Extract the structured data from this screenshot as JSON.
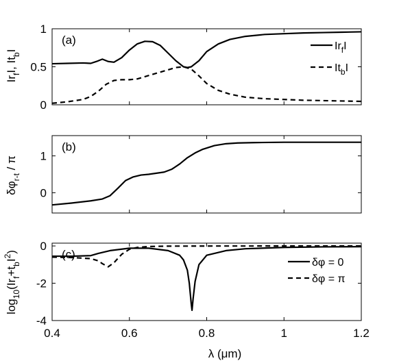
{
  "chart_data": [
    {
      "type": "line",
      "panel_label": "(a)",
      "ylabel": "|r_f|, |t_b|",
      "ylabel_parts": {
        "main1": "Ir",
        "sub1": "f",
        "mid": "I, It",
        "sub2": "b",
        "end": "I"
      },
      "xlim": [
        0.4,
        1.2
      ],
      "ylim": [
        0,
        1
      ],
      "yticks": [
        "0",
        "0.5",
        "1"
      ],
      "ytick_values": [
        0,
        0.5,
        1
      ],
      "legend_position": "top-right",
      "legend": [
        {
          "label": "|r_f|",
          "parts": {
            "main": "Ir",
            "sub": "f",
            "end": "I"
          },
          "style": "solid"
        },
        {
          "label": "|t_b|",
          "parts": {
            "main": "It",
            "sub": "b",
            "end": "I"
          },
          "style": "dashed"
        }
      ],
      "series": [
        {
          "name": "|r_f|",
          "style": "solid",
          "x": [
            0.4,
            0.44,
            0.48,
            0.5,
            0.515,
            0.53,
            0.545,
            0.56,
            0.58,
            0.6,
            0.62,
            0.64,
            0.66,
            0.68,
            0.7,
            0.72,
            0.74,
            0.75,
            0.76,
            0.78,
            0.8,
            0.83,
            0.86,
            0.9,
            0.95,
            1.0,
            1.05,
            1.1,
            1.15,
            1.2
          ],
          "y": [
            0.54,
            0.545,
            0.55,
            0.545,
            0.57,
            0.6,
            0.57,
            0.56,
            0.62,
            0.72,
            0.8,
            0.835,
            0.83,
            0.78,
            0.68,
            0.58,
            0.5,
            0.49,
            0.5,
            0.58,
            0.7,
            0.8,
            0.86,
            0.9,
            0.925,
            0.935,
            0.945,
            0.95,
            0.955,
            0.96
          ]
        },
        {
          "name": "|t_b|",
          "style": "dashed",
          "x": [
            0.4,
            0.44,
            0.48,
            0.5,
            0.52,
            0.54,
            0.56,
            0.58,
            0.6,
            0.62,
            0.64,
            0.66,
            0.68,
            0.7,
            0.72,
            0.74,
            0.76,
            0.78,
            0.8,
            0.83,
            0.86,
            0.9,
            0.95,
            1.0,
            1.05,
            1.1,
            1.15,
            1.2
          ],
          "y": [
            0.02,
            0.04,
            0.07,
            0.11,
            0.18,
            0.27,
            0.32,
            0.33,
            0.33,
            0.34,
            0.37,
            0.4,
            0.43,
            0.46,
            0.49,
            0.5,
            0.47,
            0.38,
            0.28,
            0.19,
            0.14,
            0.1,
            0.08,
            0.07,
            0.06,
            0.055,
            0.05,
            0.045
          ]
        }
      ]
    },
    {
      "type": "line",
      "panel_label": "(b)",
      "ylabel": "δφ_r-t / π",
      "ylabel_parts": {
        "main": "δφ",
        "sub": "r-t",
        "end": " / π"
      },
      "xlim": [
        0.4,
        1.2
      ],
      "ylim": [
        -0.55,
        1.55
      ],
      "yticks": [
        "0",
        "1"
      ],
      "ytick_values": [
        0,
        1
      ],
      "series": [
        {
          "name": "",
          "style": "solid",
          "x": [
            0.4,
            0.45,
            0.5,
            0.53,
            0.55,
            0.57,
            0.59,
            0.61,
            0.63,
            0.65,
            0.67,
            0.69,
            0.71,
            0.73,
            0.75,
            0.77,
            0.79,
            0.82,
            0.85,
            0.88,
            0.92,
            1.0,
            1.1,
            1.2
          ],
          "y": [
            -0.33,
            -0.28,
            -0.22,
            -0.17,
            -0.08,
            0.12,
            0.33,
            0.43,
            0.48,
            0.5,
            0.53,
            0.56,
            0.64,
            0.78,
            0.95,
            1.08,
            1.18,
            1.28,
            1.33,
            1.35,
            1.36,
            1.37,
            1.37,
            1.37
          ]
        }
      ]
    },
    {
      "type": "line",
      "panel_label": "(c)",
      "ylabel": "log_10(|r_f+t_b|^2)",
      "ylabel_parts": {
        "a": "log",
        "b": "10",
        "c": "(Ir",
        "d": "f",
        "e": "+t",
        "f": "b",
        "g": "I",
        "h": "2",
        "i": ")"
      },
      "xlabel": "λ (μm)",
      "xlim": [
        0.4,
        1.2
      ],
      "ylim": [
        -4,
        0.15
      ],
      "xticks": [
        "0.4",
        "0.6",
        "0.8",
        "1",
        "1.2"
      ],
      "xtick_values": [
        0.4,
        0.6,
        0.8,
        1.0,
        1.2
      ],
      "yticks": [
        "-4",
        "-2",
        "0"
      ],
      "ytick_values": [
        -4,
        -2,
        0
      ],
      "legend_position": "right",
      "legend": [
        {
          "label": "δφ = 0",
          "style": "solid"
        },
        {
          "label": "δφ = π",
          "style": "dashed"
        }
      ],
      "series": [
        {
          "name": "δφ = 0",
          "style": "solid",
          "x": [
            0.4,
            0.45,
            0.5,
            0.52,
            0.55,
            0.6,
            0.65,
            0.7,
            0.73,
            0.74,
            0.75,
            0.755,
            0.76,
            0.762,
            0.765,
            0.77,
            0.78,
            0.8,
            0.85,
            0.9,
            1.0,
            1.1,
            1.2
          ],
          "y": [
            -0.55,
            -0.55,
            -0.52,
            -0.4,
            -0.25,
            -0.12,
            -0.12,
            -0.25,
            -0.5,
            -0.75,
            -1.3,
            -2.0,
            -3.1,
            -3.45,
            -2.8,
            -1.9,
            -1.0,
            -0.5,
            -0.25,
            -0.15,
            -0.08,
            -0.05,
            -0.04
          ]
        },
        {
          "name": "δφ = π",
          "style": "dashed",
          "x": [
            0.4,
            0.45,
            0.5,
            0.52,
            0.53,
            0.545,
            0.56,
            0.58,
            0.6,
            0.62,
            0.65,
            0.7,
            0.8,
            0.9,
            1.0,
            1.1,
            1.2
          ],
          "y": [
            -0.6,
            -0.62,
            -0.68,
            -0.8,
            -0.95,
            -1.12,
            -0.9,
            -0.45,
            -0.18,
            -0.08,
            -0.03,
            -0.01,
            -0.005,
            -0.003,
            -0.002,
            -0.001,
            -0.001
          ]
        }
      ]
    }
  ]
}
